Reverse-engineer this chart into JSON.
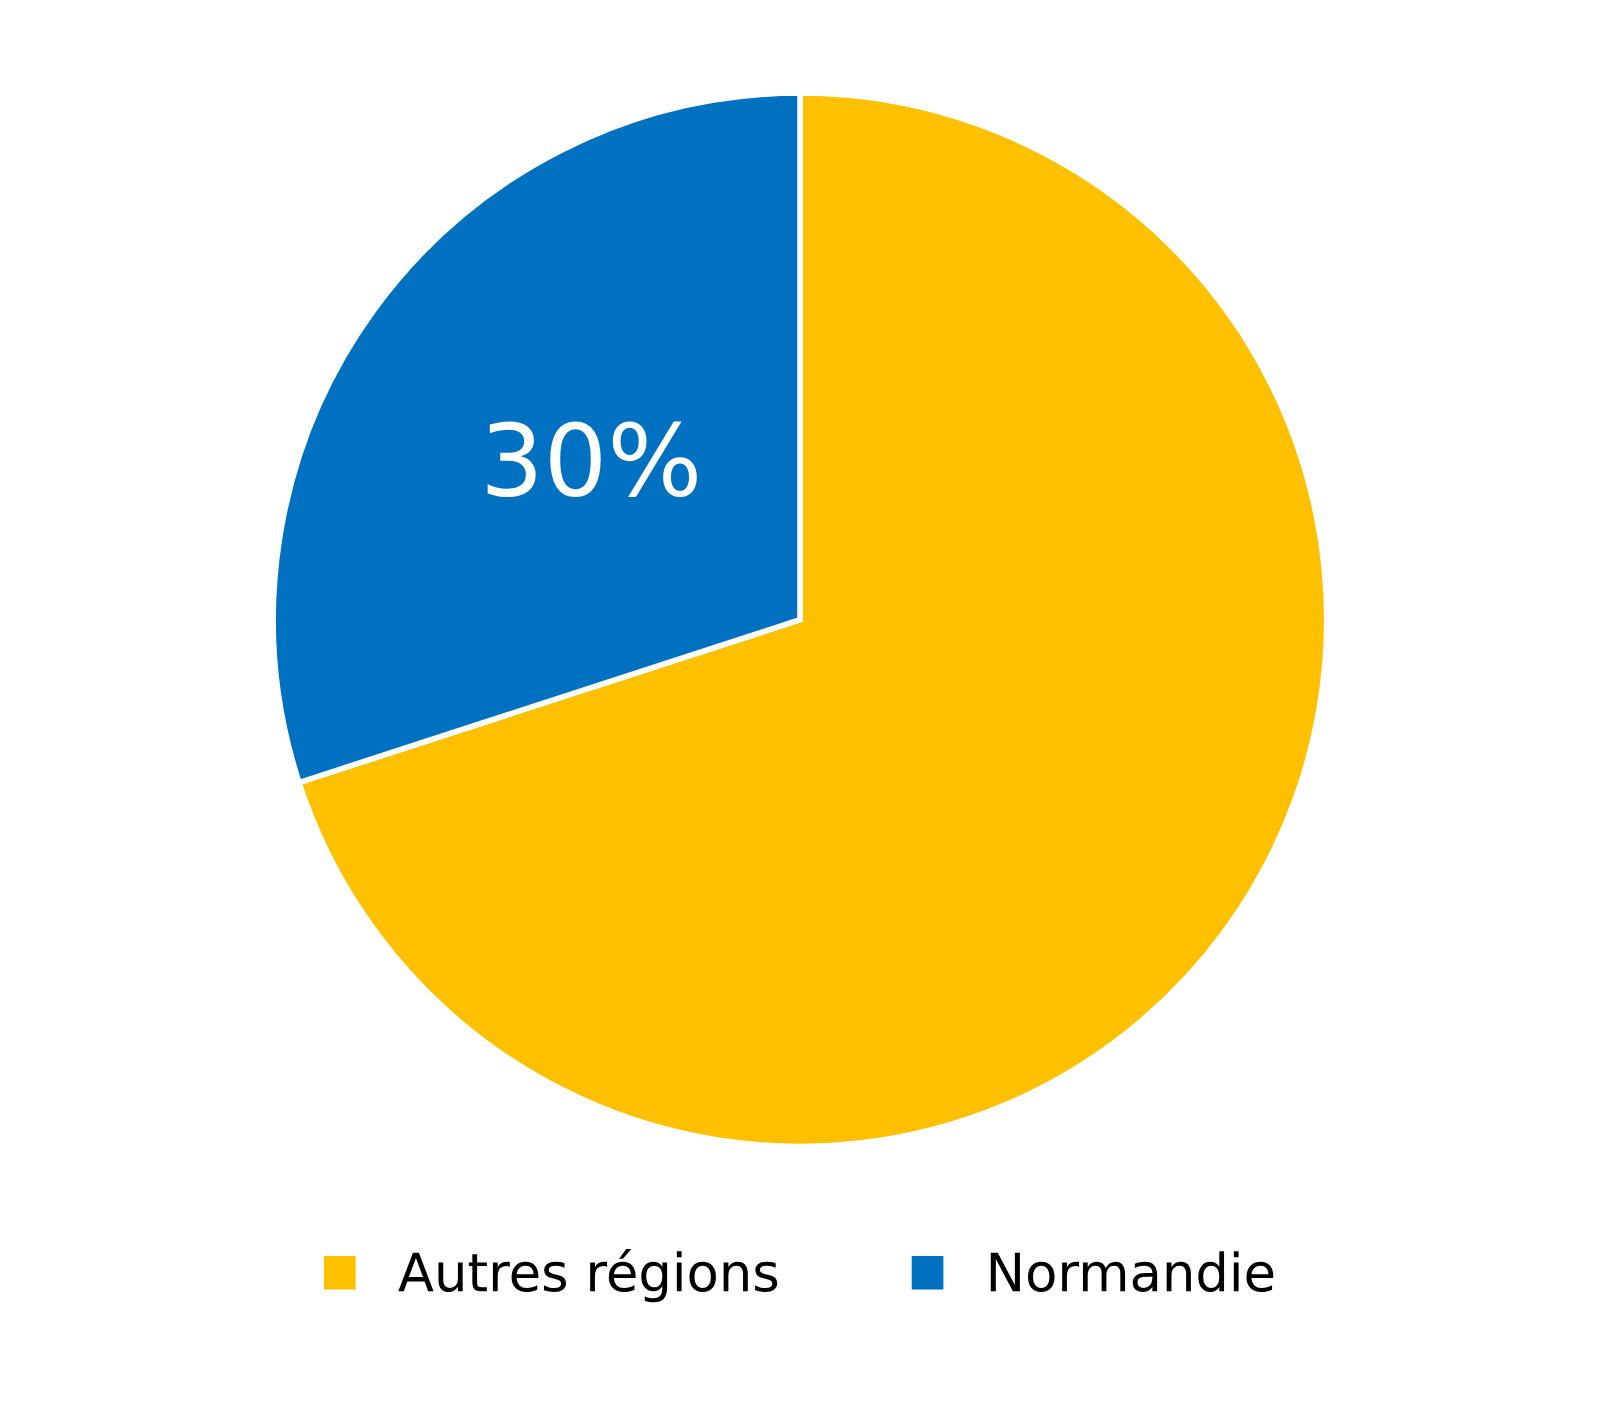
{
  "chart_data": {
    "type": "pie",
    "categories": [
      "Autres régions",
      "Normandie"
    ],
    "values": [
      70,
      30
    ],
    "colors": [
      "#ffc000",
      "#0070c0"
    ],
    "value_labels": [
      null,
      "30%"
    ],
    "legend": "bottom"
  }
}
